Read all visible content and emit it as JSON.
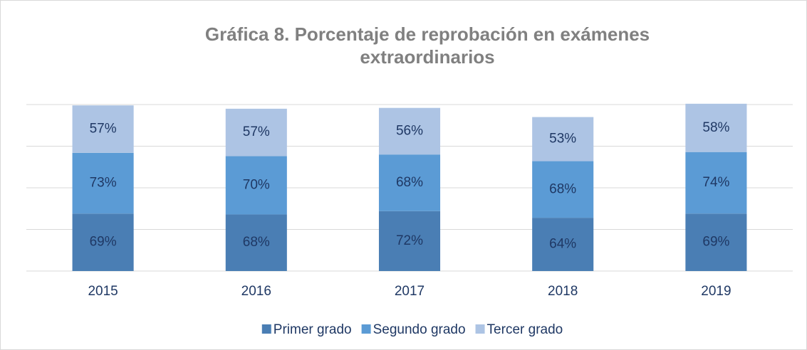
{
  "chart_data": {
    "type": "stacked_bar",
    "title": "Gráfica 8. Porcentaje de reprobación en exámenes extraordinarios",
    "categories": [
      "2015",
      "2016",
      "2017",
      "2018",
      "2019"
    ],
    "series": [
      {
        "name": "Primer grado",
        "color": "#4a7eb4",
        "values": [
          69,
          68,
          72,
          64,
          69
        ],
        "value_labels": [
          "69%",
          "68%",
          "72%",
          "64%",
          "69%"
        ]
      },
      {
        "name": "Segundo grado",
        "color": "#5b9bd5",
        "values": [
          73,
          70,
          68,
          68,
          74
        ],
        "value_labels": [
          "73%",
          "70%",
          "68%",
          "68%",
          "74%"
        ]
      },
      {
        "name": "Tercer grado",
        "color": "#adc4e4",
        "values": [
          57,
          57,
          56,
          53,
          58
        ],
        "value_labels": [
          "57%",
          "57%",
          "56%",
          "53%",
          "58%"
        ]
      }
    ],
    "ylim": [
      0,
      200
    ],
    "yticks": [
      0,
      50,
      100,
      150,
      200
    ],
    "ytick_labels": false,
    "grid": true,
    "legend": "bottom"
  }
}
